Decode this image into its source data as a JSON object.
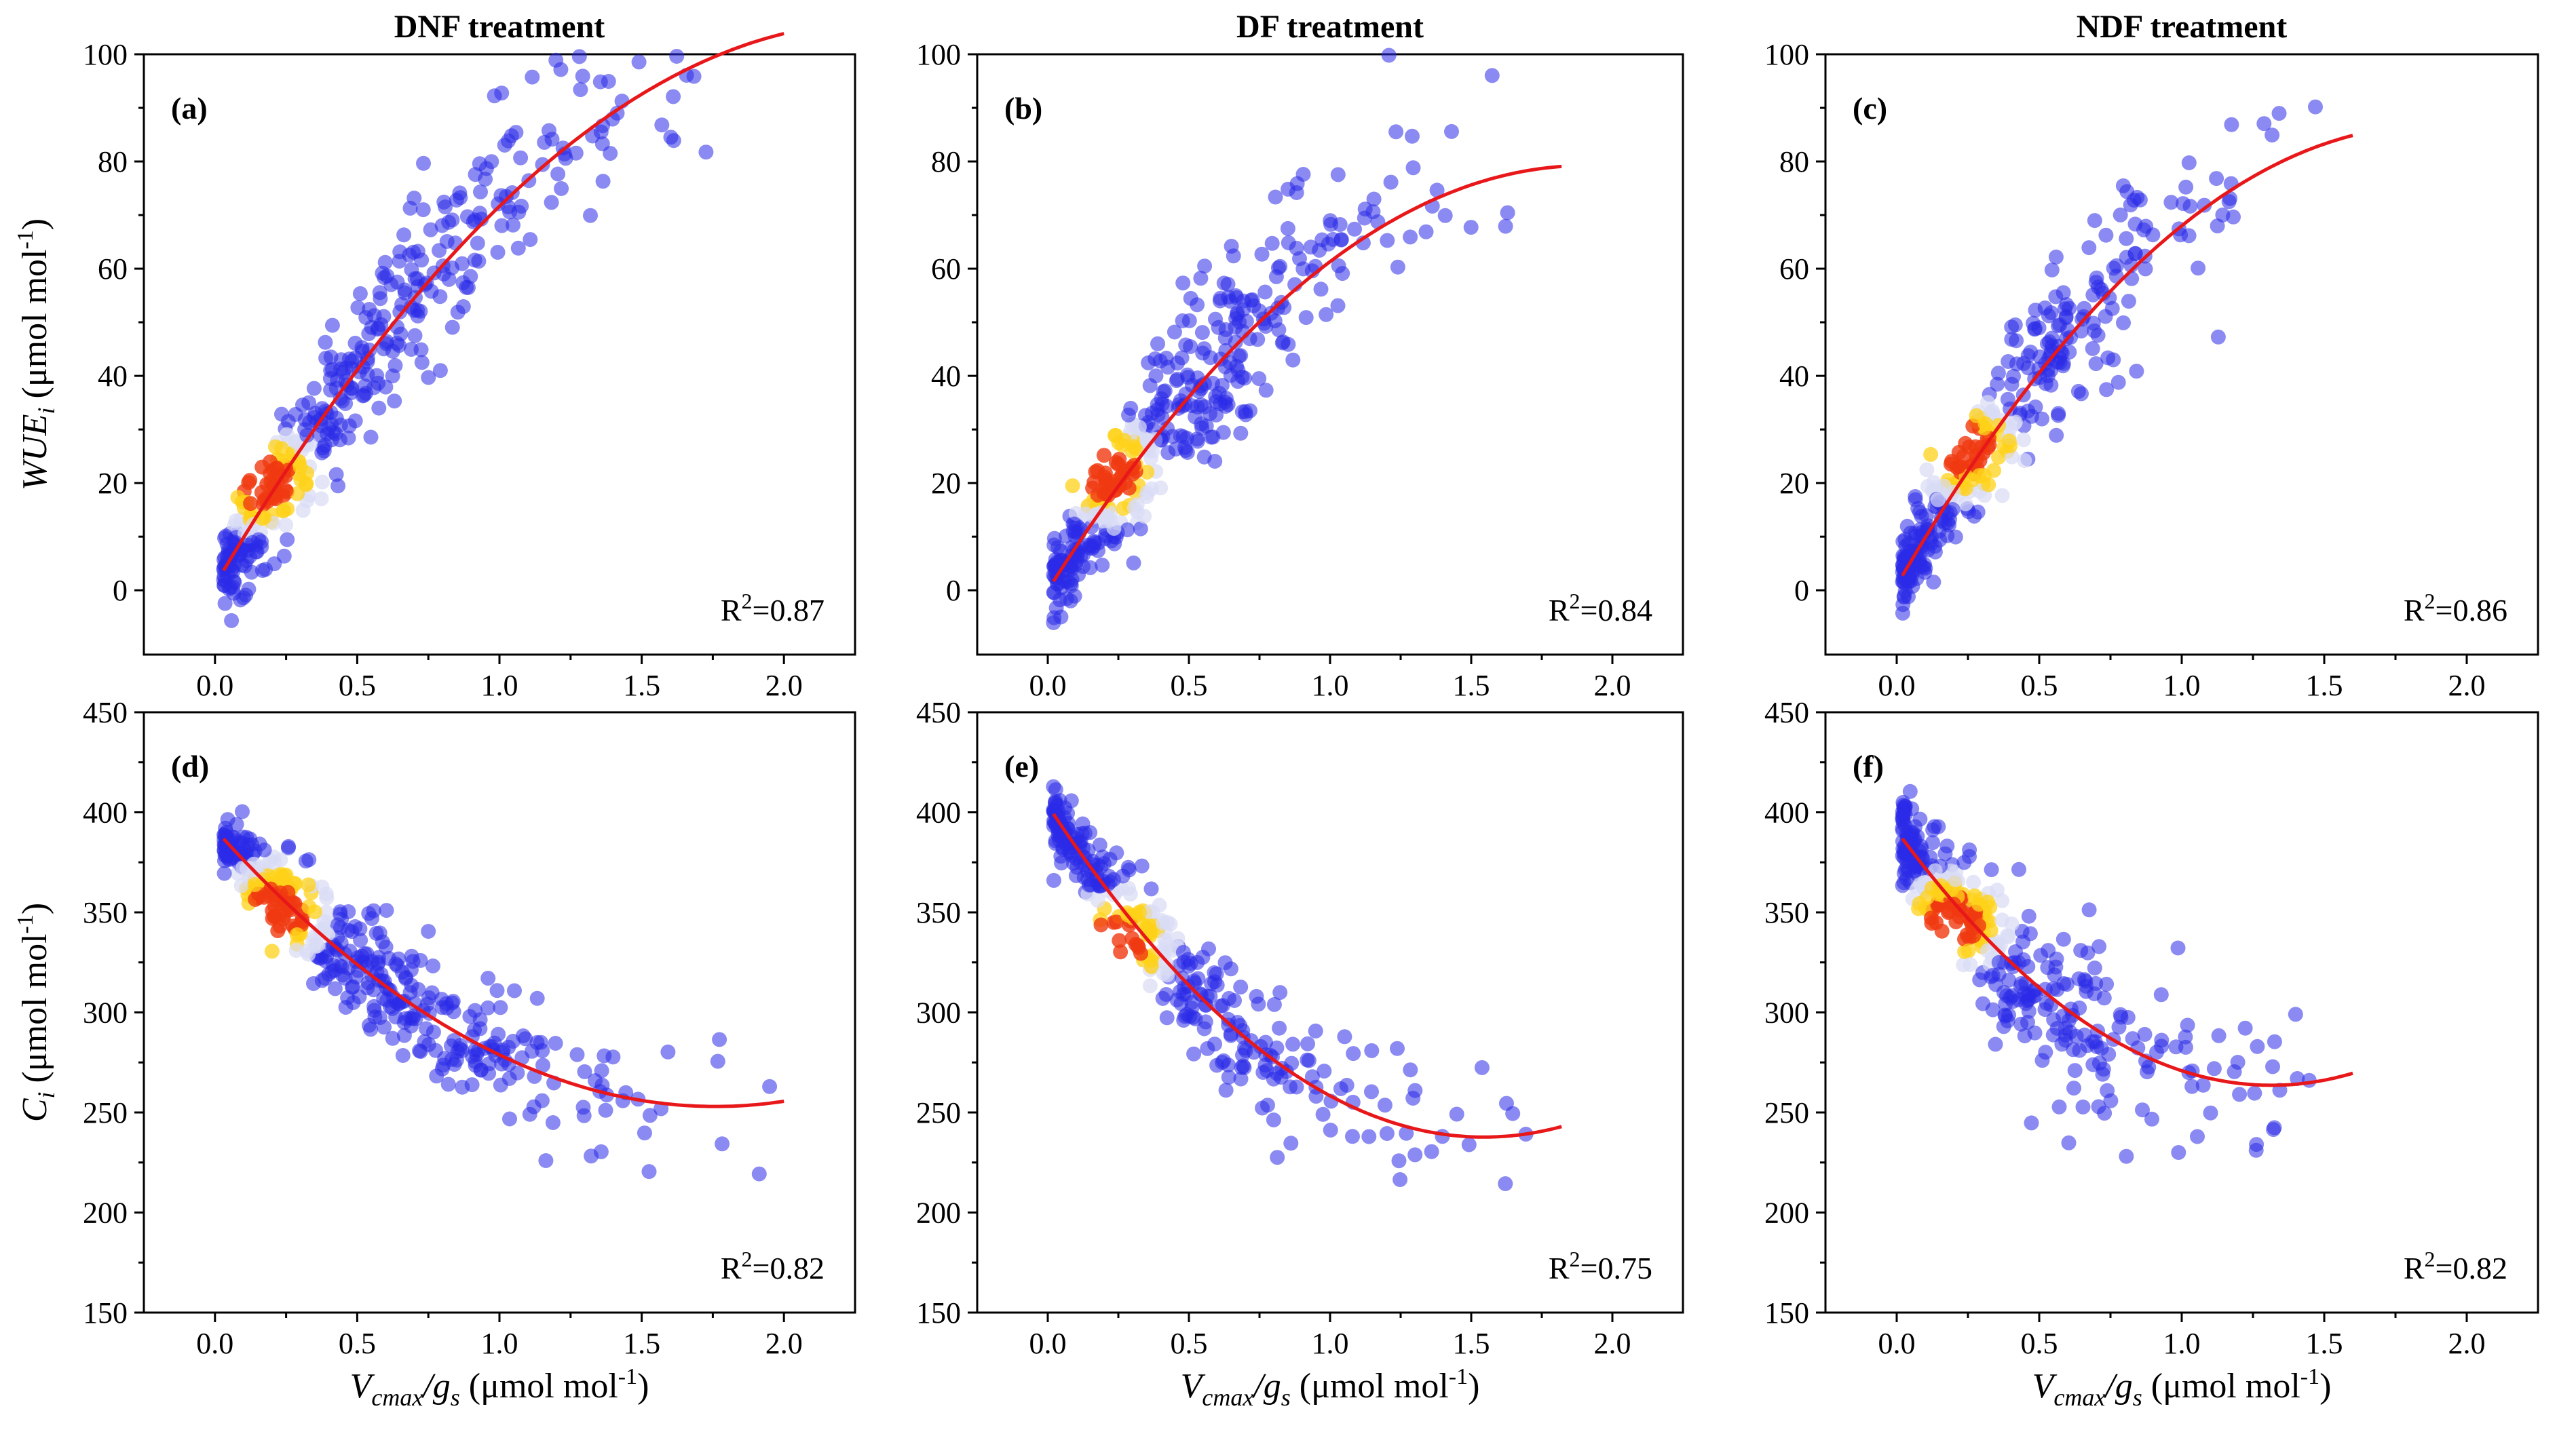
{
  "columns": [
    "DNF treatment",
    "DF treatment",
    "NDF treatment"
  ],
  "colors": {
    "fit_line": "#e8171a",
    "low_density": "#2a2ae8",
    "mid_density": "#d9dcf5",
    "high_density": "#ffd21a",
    "peak_density": "#f03a10"
  },
  "chart_data": [
    {
      "id": "a",
      "tag": "(a)",
      "type": "scatter",
      "column": "DNF treatment",
      "xlim": [
        -0.25,
        2.25
      ],
      "xticks": [
        0.0,
        0.5,
        1.0,
        1.5,
        2.0
      ],
      "xtick_labels": [
        "0.0",
        "0.5",
        "1.0",
        "1.5",
        "2.0"
      ],
      "ylim": [
        -12,
        100
      ],
      "yticks": [
        0,
        20,
        40,
        60,
        80,
        100
      ],
      "ytick_labels": [
        "0",
        "20",
        "40",
        "60",
        "80",
        "100"
      ],
      "ylabel": {
        "main": "WUE",
        "sub": "i",
        "unit": " (μmol mol",
        "sup": "-1",
        "close": ")"
      },
      "xlabel": null,
      "fit": {
        "form": "quadratic",
        "coef": [
          -19.21,
          89.85,
          0.997
        ],
        "x_range": [
          0.03,
          2.0
        ]
      },
      "r2": {
        "prefix": "R",
        "sup": "2",
        "value": "=0.87"
      },
      "cloud": {
        "n": 430,
        "xmin": 0.03,
        "xmax": 2.0,
        "shape": 0.55,
        "noise_sd": 6.5,
        "dense_x": 0.18,
        "dense_y": 20
      }
    },
    {
      "id": "b",
      "tag": "(b)",
      "type": "scatter",
      "column": "DF treatment",
      "xlim": [
        -0.25,
        2.25
      ],
      "xticks": [
        0.0,
        0.5,
        1.0,
        1.5,
        2.0
      ],
      "xtick_labels": [
        "0.0",
        "0.5",
        "1.0",
        "1.5",
        "2.0"
      ],
      "ylim": [
        -12,
        100
      ],
      "yticks": [
        0,
        20,
        40,
        60,
        80,
        100
      ],
      "ytick_labels": [
        "0",
        "20",
        "40",
        "60",
        "80",
        "100"
      ],
      "ylabel": null,
      "xlabel": null,
      "fit": {
        "form": "quadratic",
        "coef": [
          -21.79,
          83.1,
          0.0
        ],
        "x_range": [
          0.02,
          1.82
        ]
      },
      "r2": {
        "prefix": "R",
        "sup": "2",
        "value": "=0.84"
      },
      "cloud": {
        "n": 420,
        "xmin": 0.02,
        "xmax": 1.82,
        "shape": 0.55,
        "noise_sd": 7.5,
        "dense_x": 0.22,
        "dense_y": 22
      }
    },
    {
      "id": "c",
      "tag": "(c)",
      "type": "scatter",
      "column": "NDF treatment",
      "xlim": [
        -0.25,
        2.25
      ],
      "xticks": [
        0.0,
        0.5,
        1.0,
        1.5,
        2.0
      ],
      "xtick_labels": [
        "0.0",
        "0.5",
        "1.0",
        "1.5",
        "2.0"
      ],
      "ylim": [
        -12,
        100
      ],
      "yticks": [
        0,
        20,
        40,
        60,
        80,
        100
      ],
      "ytick_labels": [
        "0",
        "20",
        "40",
        "60",
        "80",
        "100"
      ],
      "ylabel": null,
      "xlabel": null,
      "fit": {
        "form": "quadratic",
        "coef": [
          -24.37,
          91.45,
          0.917
        ],
        "x_range": [
          0.02,
          1.6
        ]
      },
      "r2": {
        "prefix": "R",
        "sup": "2",
        "value": "=0.86"
      },
      "cloud": {
        "n": 360,
        "xmin": 0.02,
        "xmax": 1.6,
        "shape": 0.5,
        "noise_sd": 7.0,
        "dense_x": 0.25,
        "dense_y": 26
      }
    },
    {
      "id": "d",
      "tag": "(d)",
      "type": "scatter",
      "column": "DNF treatment",
      "xlim": [
        -0.25,
        2.25
      ],
      "xticks": [
        0.0,
        0.5,
        1.0,
        1.5,
        2.0
      ],
      "xtick_labels": [
        "0.0",
        "0.5",
        "1.0",
        "1.5",
        "2.0"
      ],
      "ylim": [
        150,
        450
      ],
      "yticks": [
        150,
        200,
        250,
        300,
        350,
        400,
        450
      ],
      "ytick_labels": [
        "150",
        "200",
        "250",
        "300",
        "350",
        "400",
        "450"
      ],
      "ylabel": {
        "main": "C",
        "sub": "i",
        "unit": " (μmol mol",
        "sup": "-1",
        "close": ")"
      },
      "xlabel": {
        "main": "V",
        "sub": "cmax",
        "mid": "/g",
        "sub2": "s",
        "unit": " (μmol mol",
        "sup": "-1",
        "close": ")"
      },
      "fit": {
        "form": "quadratic",
        "coef": [
          44.75,
          -157.45,
          391.5
        ],
        "x_range": [
          0.03,
          2.0
        ]
      },
      "r2": {
        "prefix": "R",
        "sup": "2",
        "value": "=0.82"
      },
      "cloud": {
        "n": 430,
        "xmin": 0.03,
        "xmax": 2.0,
        "shape": 0.55,
        "noise_sd": 13,
        "dense_x": 0.22,
        "dense_y": 350
      }
    },
    {
      "id": "e",
      "tag": "(e)",
      "type": "scatter",
      "column": "DF treatment",
      "xlim": [
        -0.25,
        2.25
      ],
      "xticks": [
        0.0,
        0.5,
        1.0,
        1.5,
        2.0
      ],
      "xtick_labels": [
        "0.0",
        "0.5",
        "1.0",
        "1.5",
        "2.0"
      ],
      "ylim": [
        150,
        450
      ],
      "yticks": [
        150,
        200,
        250,
        300,
        350,
        400,
        450
      ],
      "ytick_labels": [
        "150",
        "200",
        "250",
        "300",
        "350",
        "400",
        "450"
      ],
      "ylabel": null,
      "xlabel": {
        "main": "V",
        "sub": "cmax",
        "mid": "/g",
        "sub2": "s",
        "unit": " (μmol mol",
        "sup": "-1",
        "close": ")"
      },
      "fit": {
        "form": "quadratic",
        "coef": [
          69.44,
          -214.6,
          403.5
        ],
        "x_range": [
          0.02,
          1.82
        ]
      },
      "r2": {
        "prefix": "R",
        "sup": "2",
        "value": "=0.75"
      },
      "cloud": {
        "n": 330,
        "xmin": 0.02,
        "xmax": 1.82,
        "shape": 0.45,
        "noise_sd": 14,
        "dense_x": 0.25,
        "dense_y": 335
      }
    },
    {
      "id": "f",
      "tag": "(f)",
      "type": "scatter",
      "column": "NDF treatment",
      "xlim": [
        -0.25,
        2.25
      ],
      "xticks": [
        0.0,
        0.5,
        1.0,
        1.5,
        2.0
      ],
      "xtick_labels": [
        "0.0",
        "0.5",
        "1.0",
        "1.5",
        "2.0"
      ],
      "ylim": [
        150,
        450
      ],
      "yticks": [
        150,
        200,
        250,
        300,
        350,
        400,
        450
      ],
      "ytick_labels": [
        "150",
        "200",
        "250",
        "300",
        "350",
        "400",
        "450"
      ],
      "ylabel": null,
      "xlabel": {
        "main": "V",
        "sub": "cmax",
        "mid": "/g",
        "sub2": "s",
        "unit": " (μmol mol",
        "sup": "-1",
        "close": ")"
      },
      "fit": {
        "form": "quadratic",
        "coef": [
          73.57,
          -193.4,
          390.7
        ],
        "x_range": [
          0.02,
          1.6
        ]
      },
      "r2": {
        "prefix": "R",
        "sup": "2",
        "value": "=0.82"
      },
      "cloud": {
        "n": 380,
        "xmin": 0.02,
        "xmax": 1.6,
        "shape": 0.5,
        "noise_sd": 18,
        "dense_x": 0.2,
        "dense_y": 345
      }
    }
  ]
}
